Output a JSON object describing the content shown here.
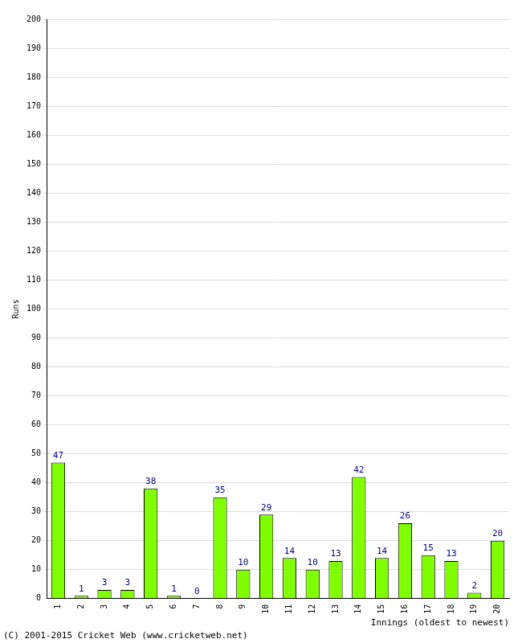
{
  "chart_data": {
    "type": "bar",
    "y_label": "Runs",
    "x_label": "Innings (oldest to newest)",
    "annotations": [
      "(C) 2001-2015 Cricket Web (www.cricketweb.net)"
    ],
    "categories": [
      "1",
      "2",
      "3",
      "4",
      "5",
      "6",
      "7",
      "8",
      "9",
      "10",
      "11",
      "12",
      "13",
      "14",
      "15",
      "16",
      "17",
      "18",
      "19",
      "20"
    ],
    "values": [
      47,
      1,
      3,
      3,
      38,
      1,
      0,
      35,
      10,
      29,
      14,
      10,
      13,
      42,
      14,
      26,
      15,
      13,
      2,
      20
    ],
    "color": "#80ff00",
    "ylim": [
      0,
      200
    ],
    "yticks": [
      0,
      10,
      20,
      30,
      40,
      50,
      60,
      70,
      80,
      90,
      100,
      110,
      120,
      130,
      140,
      150,
      160,
      170,
      180,
      190,
      200
    ],
    "grid": true,
    "data_labels": true
  }
}
